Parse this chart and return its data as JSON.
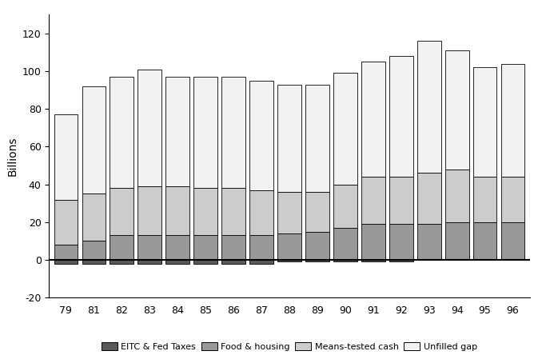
{
  "years": [
    "79",
    "81",
    "82",
    "83",
    "84",
    "85",
    "86",
    "87",
    "88",
    "89",
    "90",
    "91",
    "92",
    "93",
    "94",
    "95",
    "96"
  ],
  "eitc_fed_taxes": [
    -2,
    -2,
    -2,
    -2,
    -2,
    -2,
    -2,
    -2,
    -1,
    -1,
    -1,
    -1,
    -1,
    2,
    2,
    2,
    2
  ],
  "food_housing": [
    8,
    10,
    13,
    13,
    13,
    13,
    13,
    13,
    14,
    15,
    17,
    19,
    19,
    19,
    20,
    20,
    20
  ],
  "means_tested_cash": [
    24,
    25,
    25,
    26,
    26,
    25,
    25,
    24,
    22,
    21,
    23,
    25,
    25,
    27,
    28,
    24,
    24
  ],
  "unfilled_gap": [
    45,
    57,
    59,
    62,
    58,
    59,
    59,
    58,
    57,
    57,
    59,
    61,
    64,
    70,
    63,
    58,
    60
  ],
  "colors": {
    "eitc_fed_taxes": "#595959",
    "food_housing": "#999999",
    "means_tested_cash": "#cccccc",
    "unfilled_gap": "#f2f2f2"
  },
  "ylim": [
    -20,
    130
  ],
  "yticks": [
    -20,
    0,
    20,
    40,
    60,
    80,
    100,
    120
  ],
  "ylabel": "Billions",
  "legend_labels": [
    "EITC & Fed Taxes",
    "Food & housing",
    "Means-tested cash",
    "Unfilled gap"
  ]
}
